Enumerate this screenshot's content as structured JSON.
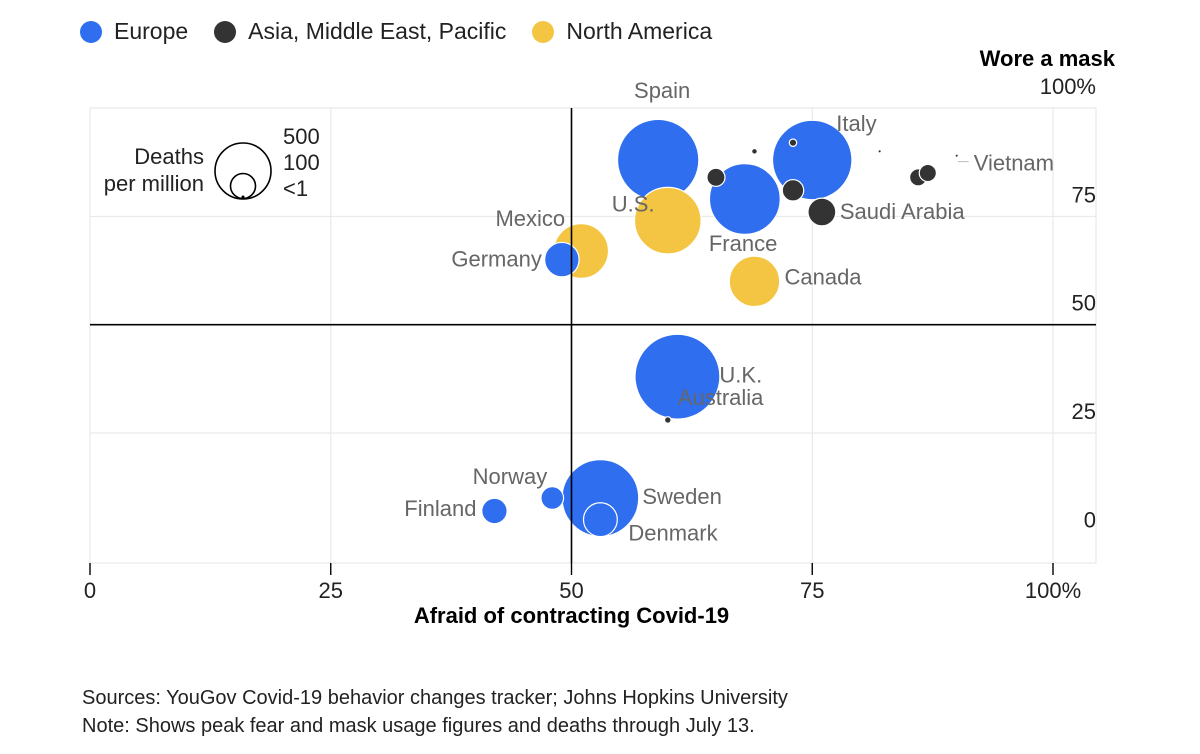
{
  "legend": [
    {
      "label": "Europe",
      "color": "#2f6fef"
    },
    {
      "label": "Asia, Middle East, Pacific",
      "color": "#333333"
    },
    {
      "label": "North America",
      "color": "#f4c542"
    }
  ],
  "size_legend": {
    "title_line1": "Deaths",
    "title_line2": "per million",
    "labels": [
      "500",
      "100",
      "<1"
    ]
  },
  "footer": {
    "sources": "Sources: YouGov Covid-19 behavior changes tracker; Johns Hopkins University",
    "note": "Note: Shows peak fear and mask usage figures and deaths through July 13."
  },
  "chart_data": {
    "type": "scatter",
    "xlabel": "Afraid of contracting Covid-19",
    "ylabel": "Wore a mask",
    "xlim": [
      0,
      100
    ],
    "ylim": [
      -5,
      100
    ],
    "x_ticks": [
      "0",
      "25",
      "50",
      "75",
      "100%"
    ],
    "y_ticks": [
      {
        "value": 100,
        "label": "100%"
      },
      {
        "value": 75,
        "label": "75"
      },
      {
        "value": 50,
        "label": "50"
      },
      {
        "value": 25,
        "label": "25"
      },
      {
        "value": 0,
        "label": "0"
      }
    ],
    "reference_lines": {
      "x": 50,
      "y": 50
    },
    "grid": true,
    "size_scale": {
      "deaths_per_million": [
        500,
        100,
        1
      ]
    },
    "colors": {
      "Europe": "#2f6fef",
      "Asia, Middle East, Pacific": "#333333",
      "North America": "#f4c542"
    },
    "points": [
      {
        "label": "Spain",
        "region": "Europe",
        "x": 59,
        "y": 88,
        "deaths": 607
      },
      {
        "label": "Italy",
        "region": "Europe",
        "x": 75,
        "y": 88,
        "deaths": 579
      },
      {
        "label": "France",
        "region": "Europe",
        "x": 68,
        "y": 79,
        "deaths": 460
      },
      {
        "label": "U.K.",
        "region": "Europe",
        "x": 61,
        "y": 38,
        "deaths": 661
      },
      {
        "label": "Sweden",
        "region": "Europe",
        "x": 53,
        "y": 10,
        "deaths": 540
      },
      {
        "label": "Germany",
        "region": "Europe",
        "x": 49,
        "y": 65,
        "deaths": 109
      },
      {
        "label": "Norway",
        "region": "Europe",
        "x": 48,
        "y": 10,
        "deaths": 47
      },
      {
        "label": "Finland",
        "region": "Europe",
        "x": 42,
        "y": 7,
        "deaths": 59
      },
      {
        "label": "Denmark",
        "region": "Europe",
        "x": 53,
        "y": 5,
        "deaths": 105
      },
      {
        "label": "U.S.",
        "region": "North America",
        "x": 60,
        "y": 74,
        "deaths": 407
      },
      {
        "label": "Mexico",
        "region": "North America",
        "x": 51,
        "y": 67,
        "deaths": 275
      },
      {
        "label": "Canada",
        "region": "North America",
        "x": 69,
        "y": 60,
        "deaths": 233
      },
      {
        "label": "Saudi Arabia",
        "region": "Asia, Middle East, Pacific",
        "x": 76,
        "y": 76,
        "deaths": 71
      },
      {
        "label": "Vietnam",
        "region": "Asia, Middle East, Pacific",
        "x": 90,
        "y": 89,
        "deaths": 1
      },
      {
        "label": "Australia",
        "region": "Asia, Middle East, Pacific",
        "x": 60,
        "y": 28,
        "deaths": 4
      },
      {
        "label": "",
        "region": "Asia, Middle East, Pacific",
        "x": 65,
        "y": 84,
        "deaths": 30
      },
      {
        "label": "",
        "region": "Asia, Middle East, Pacific",
        "x": 73,
        "y": 81,
        "deaths": 42
      },
      {
        "label": "",
        "region": "Asia, Middle East, Pacific",
        "x": 86,
        "y": 84,
        "deaths": 27
      },
      {
        "label": "",
        "region": "Asia, Middle East, Pacific",
        "x": 87,
        "y": 85,
        "deaths": 27
      },
      {
        "label": "",
        "region": "Asia, Middle East, Pacific",
        "x": 69,
        "y": 90,
        "deaths": 3
      },
      {
        "label": "",
        "region": "Asia, Middle East, Pacific",
        "x": 73,
        "y": 92,
        "deaths": 5
      },
      {
        "label": "",
        "region": "Asia, Middle East, Pacific",
        "x": 82,
        "y": 90,
        "deaths": 1
      }
    ]
  }
}
